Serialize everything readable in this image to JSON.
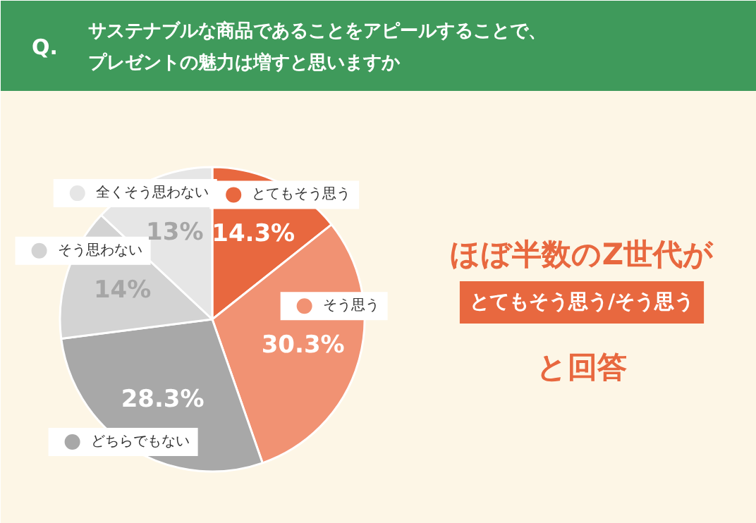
{
  "chart_data": {
    "type": "pie",
    "title": "Q.",
    "subtitle": "サステナブルな商品であることをアピールすることで、プレゼントの魅力は増すと思いますか",
    "categories": [
      "とてもそう思う",
      "そう思う",
      "どちらでもない",
      "そう思わない",
      "全くそう思わない"
    ],
    "values": [
      14.3,
      30.3,
      28.3,
      14,
      13
    ],
    "value_labels": [
      "14.3%",
      "30.3%",
      "28.3%",
      "14%",
      "13%"
    ],
    "colors": [
      "#e8683f",
      "#f19273",
      "#a8a8a8",
      "#d3d3d3",
      "#e6e6e6"
    ],
    "legend": "left",
    "annotations": [
      "ほぼ半数のZ世代が",
      "とてもそう思う/そう思う",
      "と回答"
    ]
  }
}
